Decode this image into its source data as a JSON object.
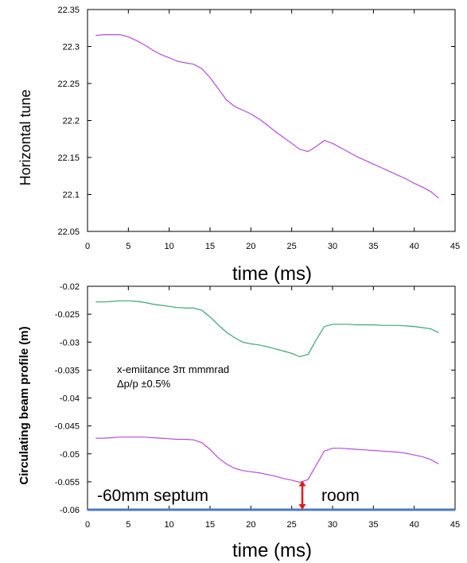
{
  "chart_data": [
    {
      "type": "line",
      "xlabel": "time (ms)",
      "ylabel": "Horizontal tune",
      "xlim": [
        0,
        45
      ],
      "ylim": [
        22.05,
        22.35
      ],
      "xticks": [
        "0",
        "5",
        "10",
        "15",
        "20",
        "25",
        "30",
        "35",
        "40",
        "45"
      ],
      "yticks": [
        "22.05",
        "22.1",
        "22.15",
        "22.2",
        "22.25",
        "22.3",
        "22.35"
      ],
      "grid": false,
      "series": [
        {
          "color": "#b44de0",
          "x": [
            1,
            2,
            3,
            4,
            5,
            6,
            7,
            8,
            9,
            10,
            11,
            12,
            13,
            14,
            15,
            16,
            17,
            18,
            19,
            20,
            21,
            22,
            23,
            24,
            25,
            26,
            27,
            28,
            29,
            30,
            31,
            32,
            33,
            34,
            35,
            36,
            37,
            38,
            39,
            40,
            41,
            42,
            43
          ],
          "y": [
            22.315,
            22.316,
            22.316,
            22.316,
            22.313,
            22.308,
            22.302,
            22.295,
            22.289,
            22.285,
            22.28,
            22.278,
            22.276,
            22.27,
            22.258,
            22.243,
            22.228,
            22.219,
            22.214,
            22.209,
            22.202,
            22.194,
            22.185,
            22.177,
            22.169,
            22.161,
            22.158,
            22.165,
            22.173,
            22.169,
            22.163,
            22.157,
            22.151,
            22.146,
            22.141,
            22.136,
            22.131,
            22.126,
            22.121,
            22.115,
            22.11,
            22.104,
            22.095
          ]
        }
      ]
    },
    {
      "type": "line",
      "xlabel": "time (ms)",
      "ylabel": "Circulating beam profile  (m)",
      "xlim": [
        0,
        45
      ],
      "ylim": [
        -0.06,
        -0.02
      ],
      "xticks": [
        "0",
        "5",
        "10",
        "15",
        "20",
        "25",
        "30",
        "35",
        "40",
        "45"
      ],
      "yticks": [
        "-0.02",
        "-0.025",
        "-0.03",
        "-0.035",
        "-0.04",
        "-0.045",
        "-0.05",
        "-0.055",
        "-0.06"
      ],
      "grid": false,
      "series": [
        {
          "color": "#3aa870",
          "x": [
            1,
            2,
            3,
            4,
            5,
            6,
            7,
            8,
            9,
            10,
            11,
            12,
            13,
            14,
            15,
            16,
            17,
            18,
            19,
            20,
            21,
            22,
            23,
            24,
            25,
            26,
            27,
            28,
            29,
            30,
            31,
            32,
            33,
            34,
            35,
            36,
            37,
            38,
            39,
            40,
            41,
            42,
            43
          ],
          "y": [
            -0.0228,
            -0.0228,
            -0.0227,
            -0.0226,
            -0.0226,
            -0.0227,
            -0.0229,
            -0.0232,
            -0.0234,
            -0.0236,
            -0.0238,
            -0.0239,
            -0.0239,
            -0.0243,
            -0.0255,
            -0.0269,
            -0.0282,
            -0.0292,
            -0.03,
            -0.0303,
            -0.0305,
            -0.0308,
            -0.0312,
            -0.0316,
            -0.032,
            -0.0326,
            -0.0322,
            -0.0296,
            -0.0272,
            -0.0268,
            -0.0268,
            -0.0268,
            -0.0269,
            -0.0269,
            -0.0269,
            -0.027,
            -0.027,
            -0.027,
            -0.0271,
            -0.0272,
            -0.0274,
            -0.0276,
            -0.0283
          ]
        },
        {
          "color": "#b44de0",
          "x": [
            1,
            2,
            3,
            4,
            5,
            6,
            7,
            8,
            9,
            10,
            11,
            12,
            13,
            14,
            15,
            16,
            17,
            18,
            19,
            20,
            21,
            22,
            23,
            24,
            25,
            26,
            27,
            28,
            29,
            30,
            31,
            32,
            33,
            34,
            35,
            36,
            37,
            38,
            39,
            40,
            41,
            42,
            43
          ],
          "y": [
            -0.0472,
            -0.0472,
            -0.0471,
            -0.047,
            -0.047,
            -0.047,
            -0.047,
            -0.0471,
            -0.0472,
            -0.0473,
            -0.0474,
            -0.0474,
            -0.0475,
            -0.048,
            -0.0492,
            -0.0507,
            -0.0518,
            -0.0526,
            -0.053,
            -0.0532,
            -0.0534,
            -0.0537,
            -0.054,
            -0.0544,
            -0.0547,
            -0.0551,
            -0.0546,
            -0.052,
            -0.0495,
            -0.049,
            -0.049,
            -0.0491,
            -0.0492,
            -0.0493,
            -0.0494,
            -0.0495,
            -0.0496,
            -0.0497,
            -0.0499,
            -0.0502,
            -0.0505,
            -0.051,
            -0.0518
          ]
        }
      ],
      "septum": {
        "y": -0.06,
        "color": "#4a78c8"
      },
      "arrow": {
        "x": 26.3,
        "y_from": -0.06,
        "y_to": -0.0548,
        "color": "#e3191c"
      },
      "annotations": {
        "emittance": "x-emiitance 3π mmmrad",
        "momentum": "Δp/p ±0.5%",
        "septum_label": "-60mm septum",
        "room_label": "room"
      }
    }
  ]
}
